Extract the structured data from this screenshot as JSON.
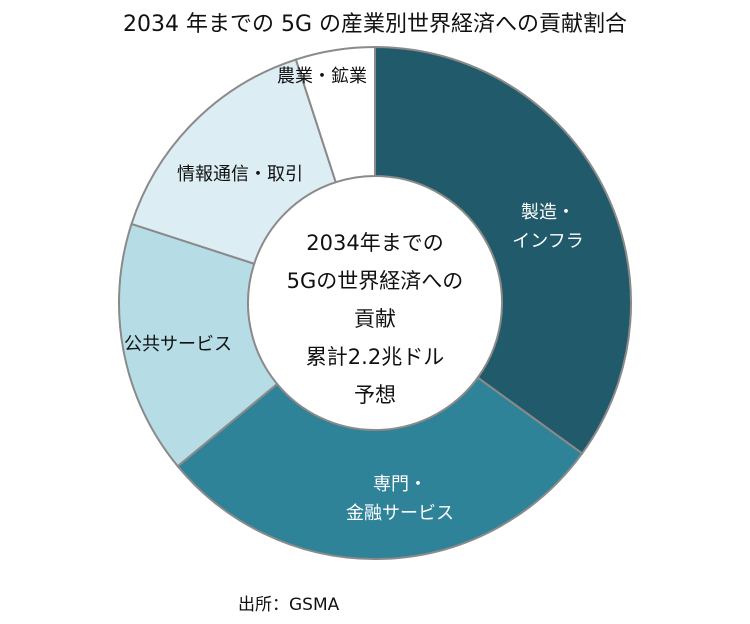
{
  "chart_data": {
    "type": "pie",
    "style": "donut",
    "title": "2034 年までの 5G の産業別世界経済への貢献割合",
    "center_text": [
      "2034年までの",
      "5Gの世界経済への",
      "貢献",
      "累計2.2兆ドル",
      "予想"
    ],
    "slices": [
      {
        "label": [
          "製造・",
          "インフラ"
        ],
        "value": 35,
        "color": "#215b6b",
        "label_color": "#ffffff"
      },
      {
        "label": [
          "専門・",
          "金融サービス"
        ],
        "value": 29,
        "color": "#2f8399",
        "label_color": "#ffffff"
      },
      {
        "label": [
          "公共サービス"
        ],
        "value": 16,
        "color": "#b6dce6",
        "label_color": "#111111"
      },
      {
        "label": [
          "情報通信・取引"
        ],
        "value": 15,
        "color": "#dcedf3",
        "label_color": "#111111"
      },
      {
        "label": [
          "農業・鉱業"
        ],
        "value": 5,
        "color": "#ffffff",
        "label_color": "#111111"
      }
    ],
    "source": "出所：GSMA"
  }
}
